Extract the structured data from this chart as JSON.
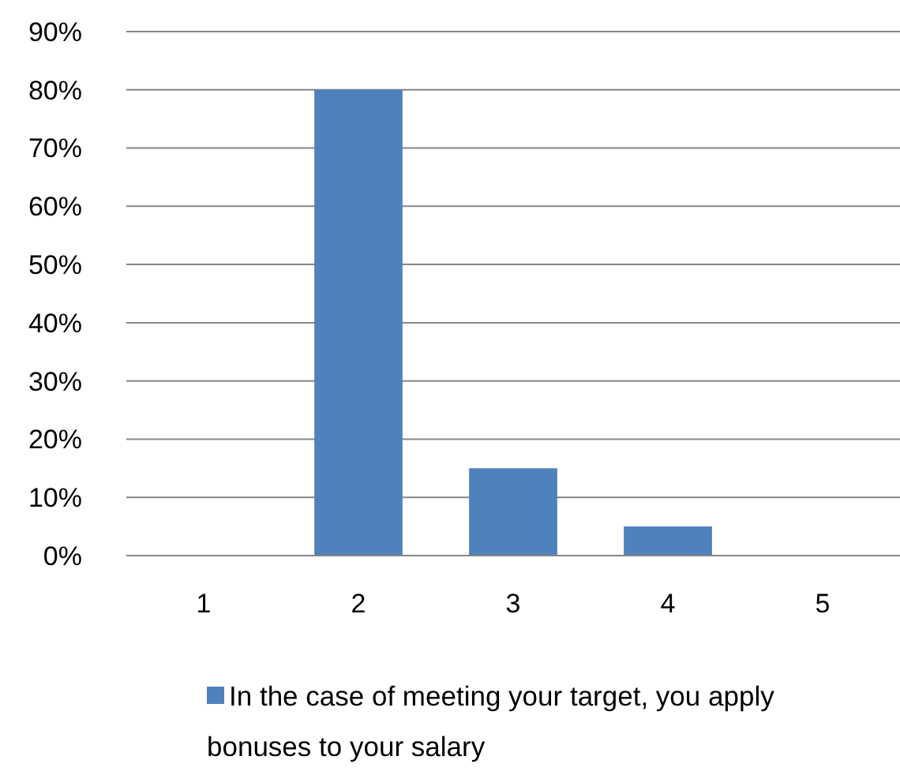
{
  "chart_data": {
    "type": "bar",
    "categories": [
      "1",
      "2",
      "3",
      "4",
      "5"
    ],
    "series": [
      {
        "name": "In the case of meeting your target, you apply bonuses to your salary",
        "color": "#4f81bd",
        "values": [
          0,
          80,
          15,
          5,
          0
        ]
      }
    ],
    "ylim": [
      0,
      90
    ],
    "yticks": [
      {
        "value": 0,
        "label": "0%"
      },
      {
        "value": 10,
        "label": "10%"
      },
      {
        "value": 20,
        "label": "20%"
      },
      {
        "value": 30,
        "label": "30%"
      },
      {
        "value": 40,
        "label": "40%"
      },
      {
        "value": 50,
        "label": "50%"
      },
      {
        "value": 60,
        "label": "60%"
      },
      {
        "value": 70,
        "label": "70%"
      },
      {
        "value": 80,
        "label": "80%"
      },
      {
        "value": 90,
        "label": "90%"
      }
    ],
    "grid": "y",
    "legend": "bottom"
  }
}
